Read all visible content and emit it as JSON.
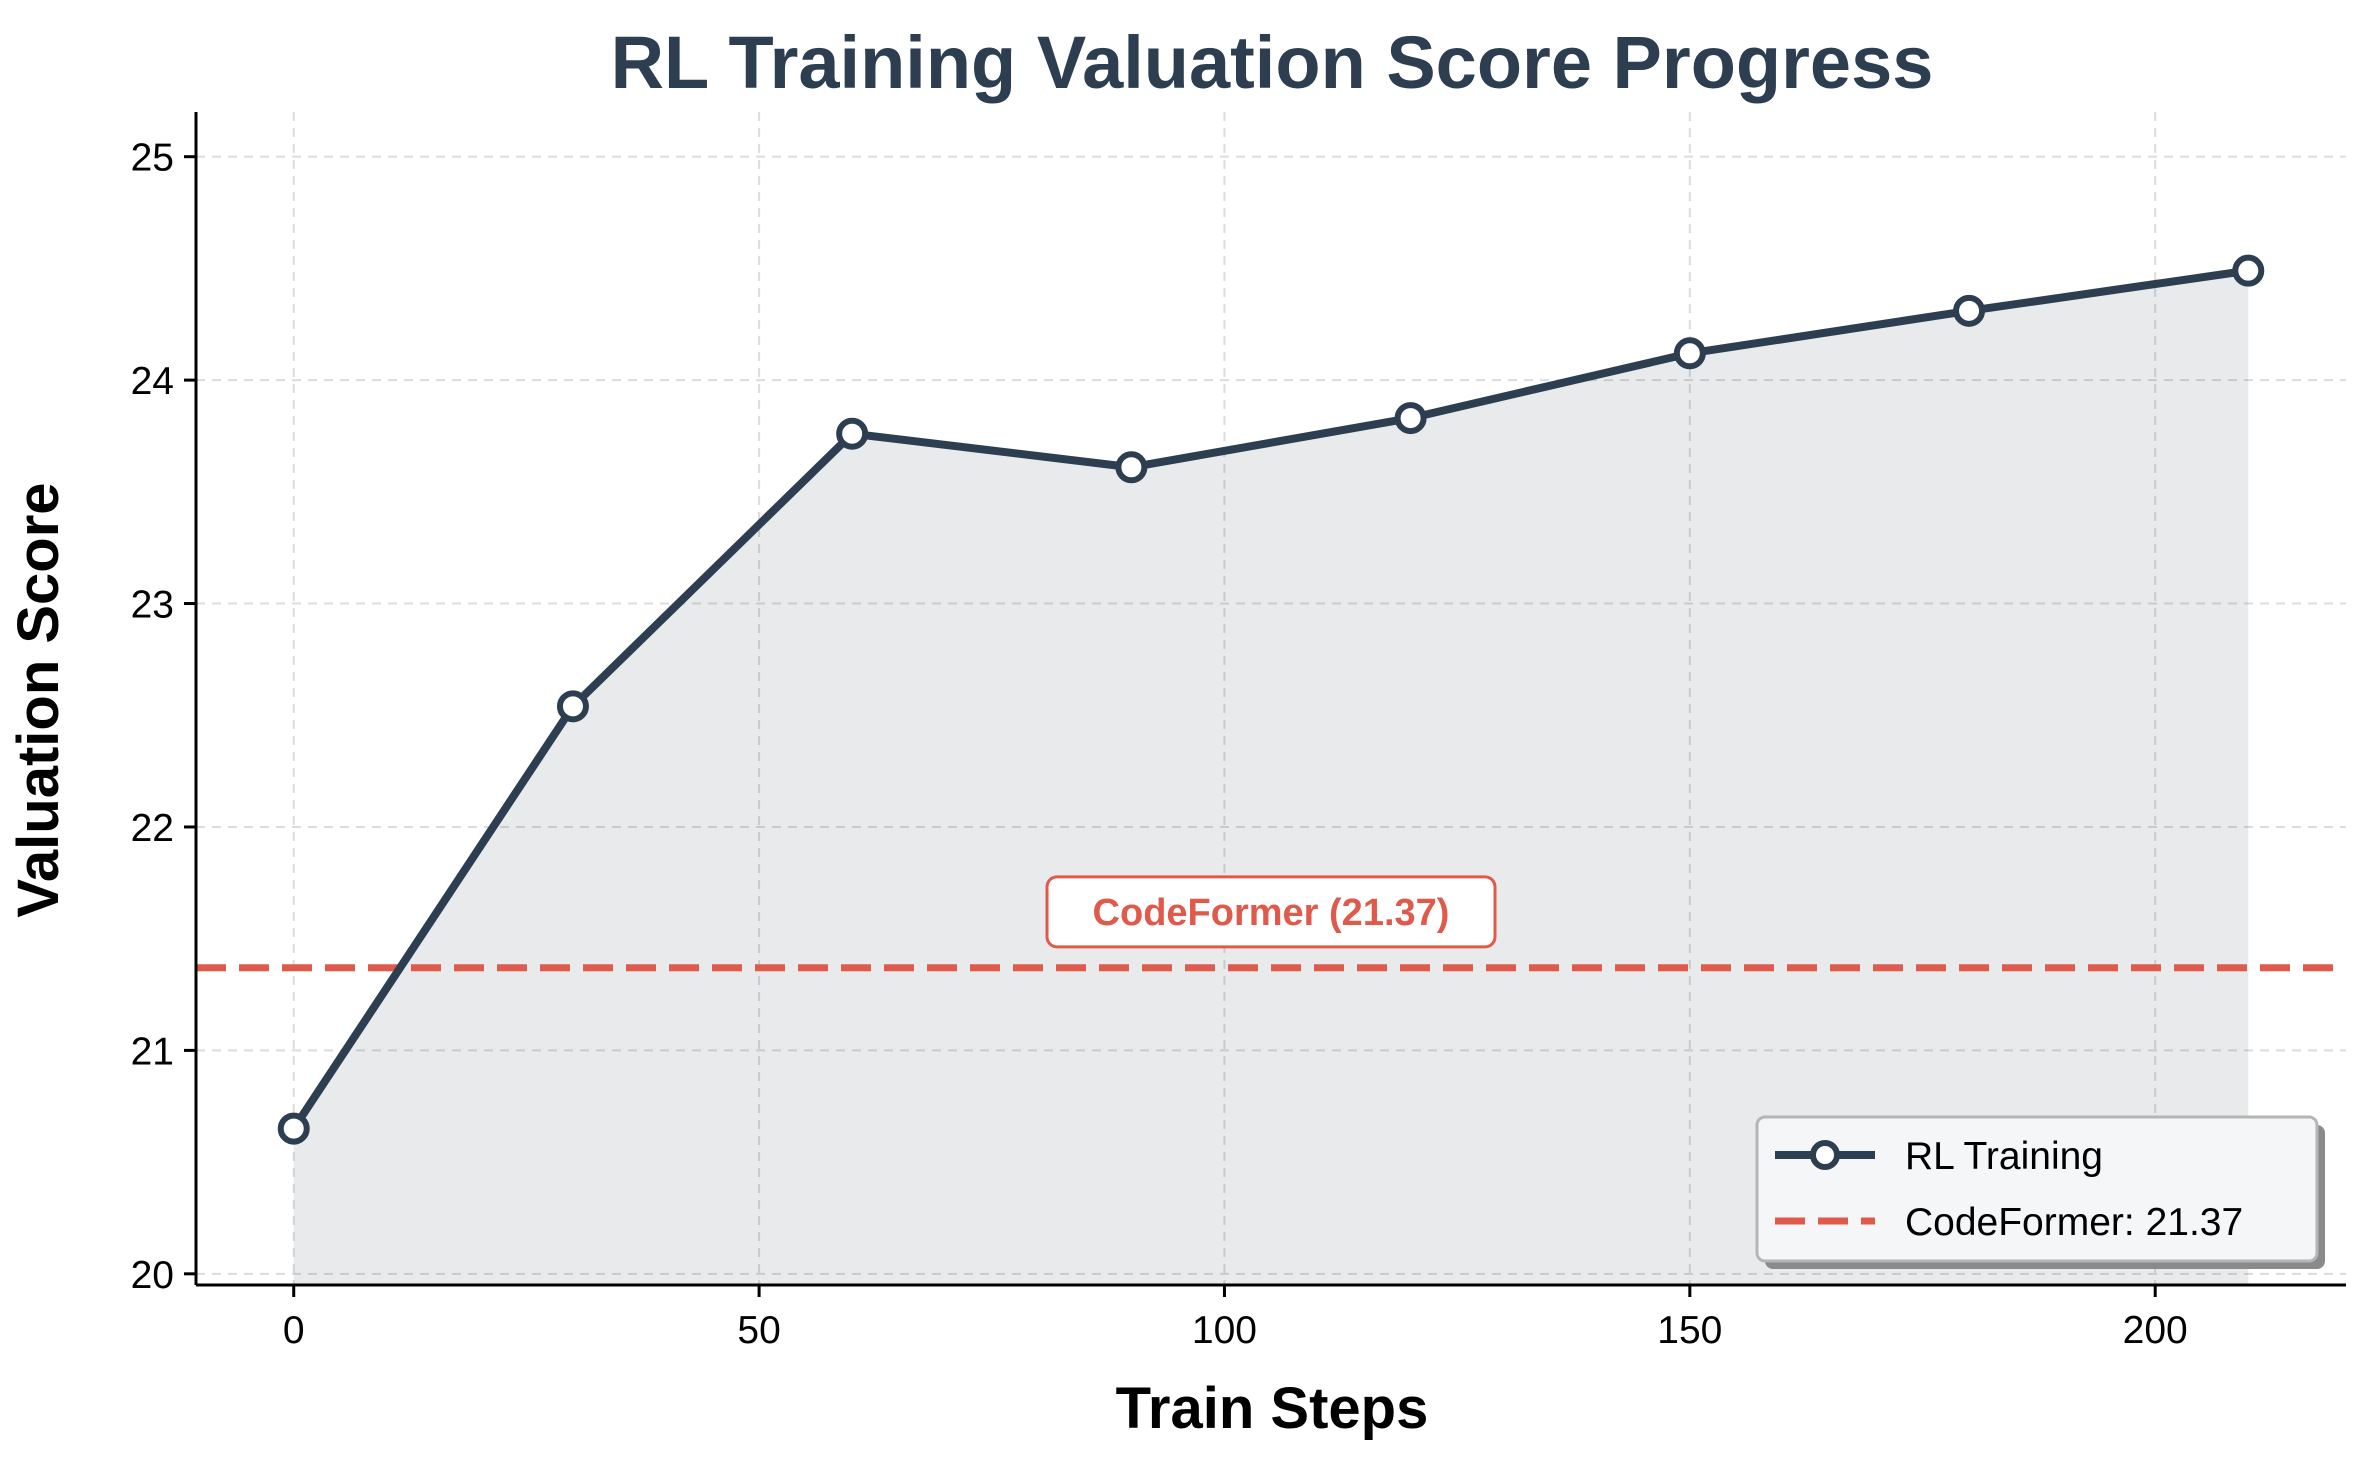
{
  "chart_data": {
    "type": "line",
    "title": "RL Training Valuation Score Progress",
    "xlabel": "Train Steps",
    "ylabel": "Valuation Score",
    "xlim": [
      -10.5,
      220.5
    ],
    "ylim": [
      19.95,
      25.2
    ],
    "x_ticks": [
      0,
      50,
      100,
      150,
      200
    ],
    "y_ticks": [
      20,
      21,
      22,
      23,
      24,
      25
    ],
    "grid": true,
    "series": [
      {
        "name": "RL Training",
        "style": "line-with-hollow-markers, shaded area below",
        "color": "#2c3e50",
        "x": [
          0,
          30,
          60,
          90,
          120,
          150,
          180,
          210
        ],
        "values": [
          20.65,
          22.54,
          23.76,
          23.61,
          23.83,
          24.12,
          24.31,
          24.49
        ]
      }
    ],
    "reference_lines": [
      {
        "name": "CodeFormer: 21.37",
        "value": 21.37,
        "style": "dashed",
        "color": "#e05a4b"
      }
    ],
    "annotations": [
      {
        "text": "CodeFormer (21.37)",
        "x": 105,
        "y": 21.62,
        "color": "#e05a4b"
      }
    ],
    "legend": {
      "placement": "lower-right",
      "entries": [
        "RL Training",
        "CodeFormer: 21.37"
      ]
    }
  }
}
